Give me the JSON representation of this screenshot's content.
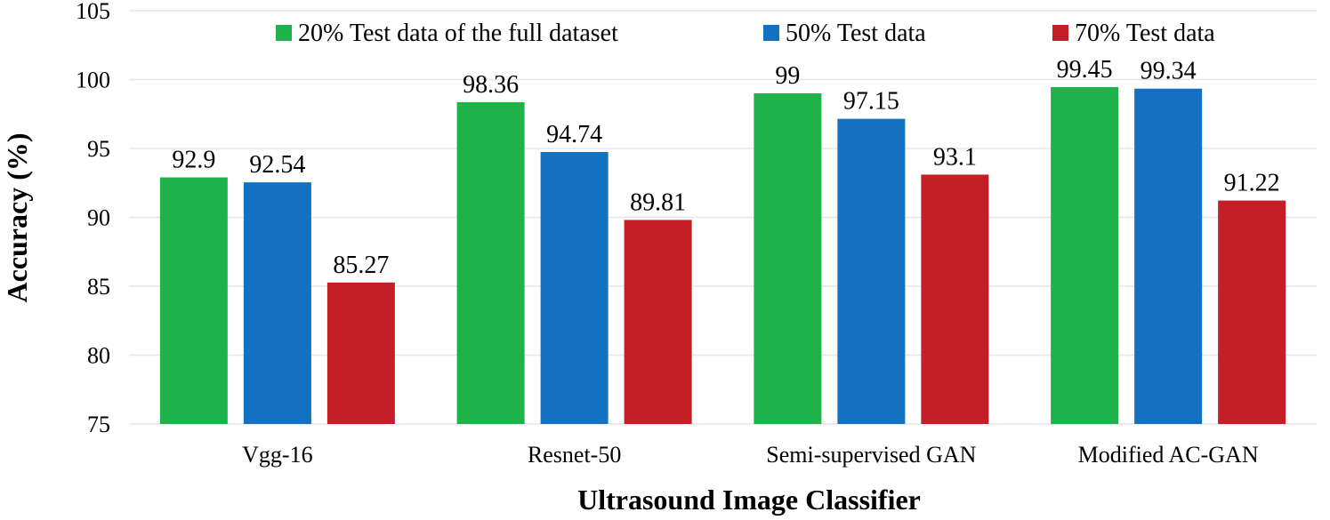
{
  "chart_data": {
    "type": "bar",
    "categories": [
      "Vgg-16",
      "Resnet-50",
      "Semi-supervised GAN",
      "Modified AC-GAN"
    ],
    "series": [
      {
        "name": "20% Test data of the full dataset",
        "color": "#1fb24a",
        "values": [
          92.9,
          98.36,
          99,
          99.45
        ],
        "labels": [
          "92.9",
          "98.36",
          "99",
          "99.45"
        ]
      },
      {
        "name": "50% Test data",
        "color": "#1470c0",
        "values": [
          92.54,
          94.74,
          97.15,
          99.34
        ],
        "labels": [
          "92.54",
          "94.74",
          "97.15",
          "99.34"
        ]
      },
      {
        "name": "70% Test data",
        "color": "#c41e26",
        "values": [
          85.27,
          89.81,
          93.1,
          91.22
        ],
        "labels": [
          "85.27",
          "89.81",
          "93.1",
          "91.22"
        ]
      }
    ],
    "xlabel": "Ultrasound Image Classifier",
    "ylabel": "Accuracy (%)",
    "ylim": [
      75,
      105
    ],
    "yticks": [
      "75",
      "80",
      "85",
      "90",
      "95",
      "100",
      "105"
    ],
    "grid": true,
    "legend": "top"
  }
}
